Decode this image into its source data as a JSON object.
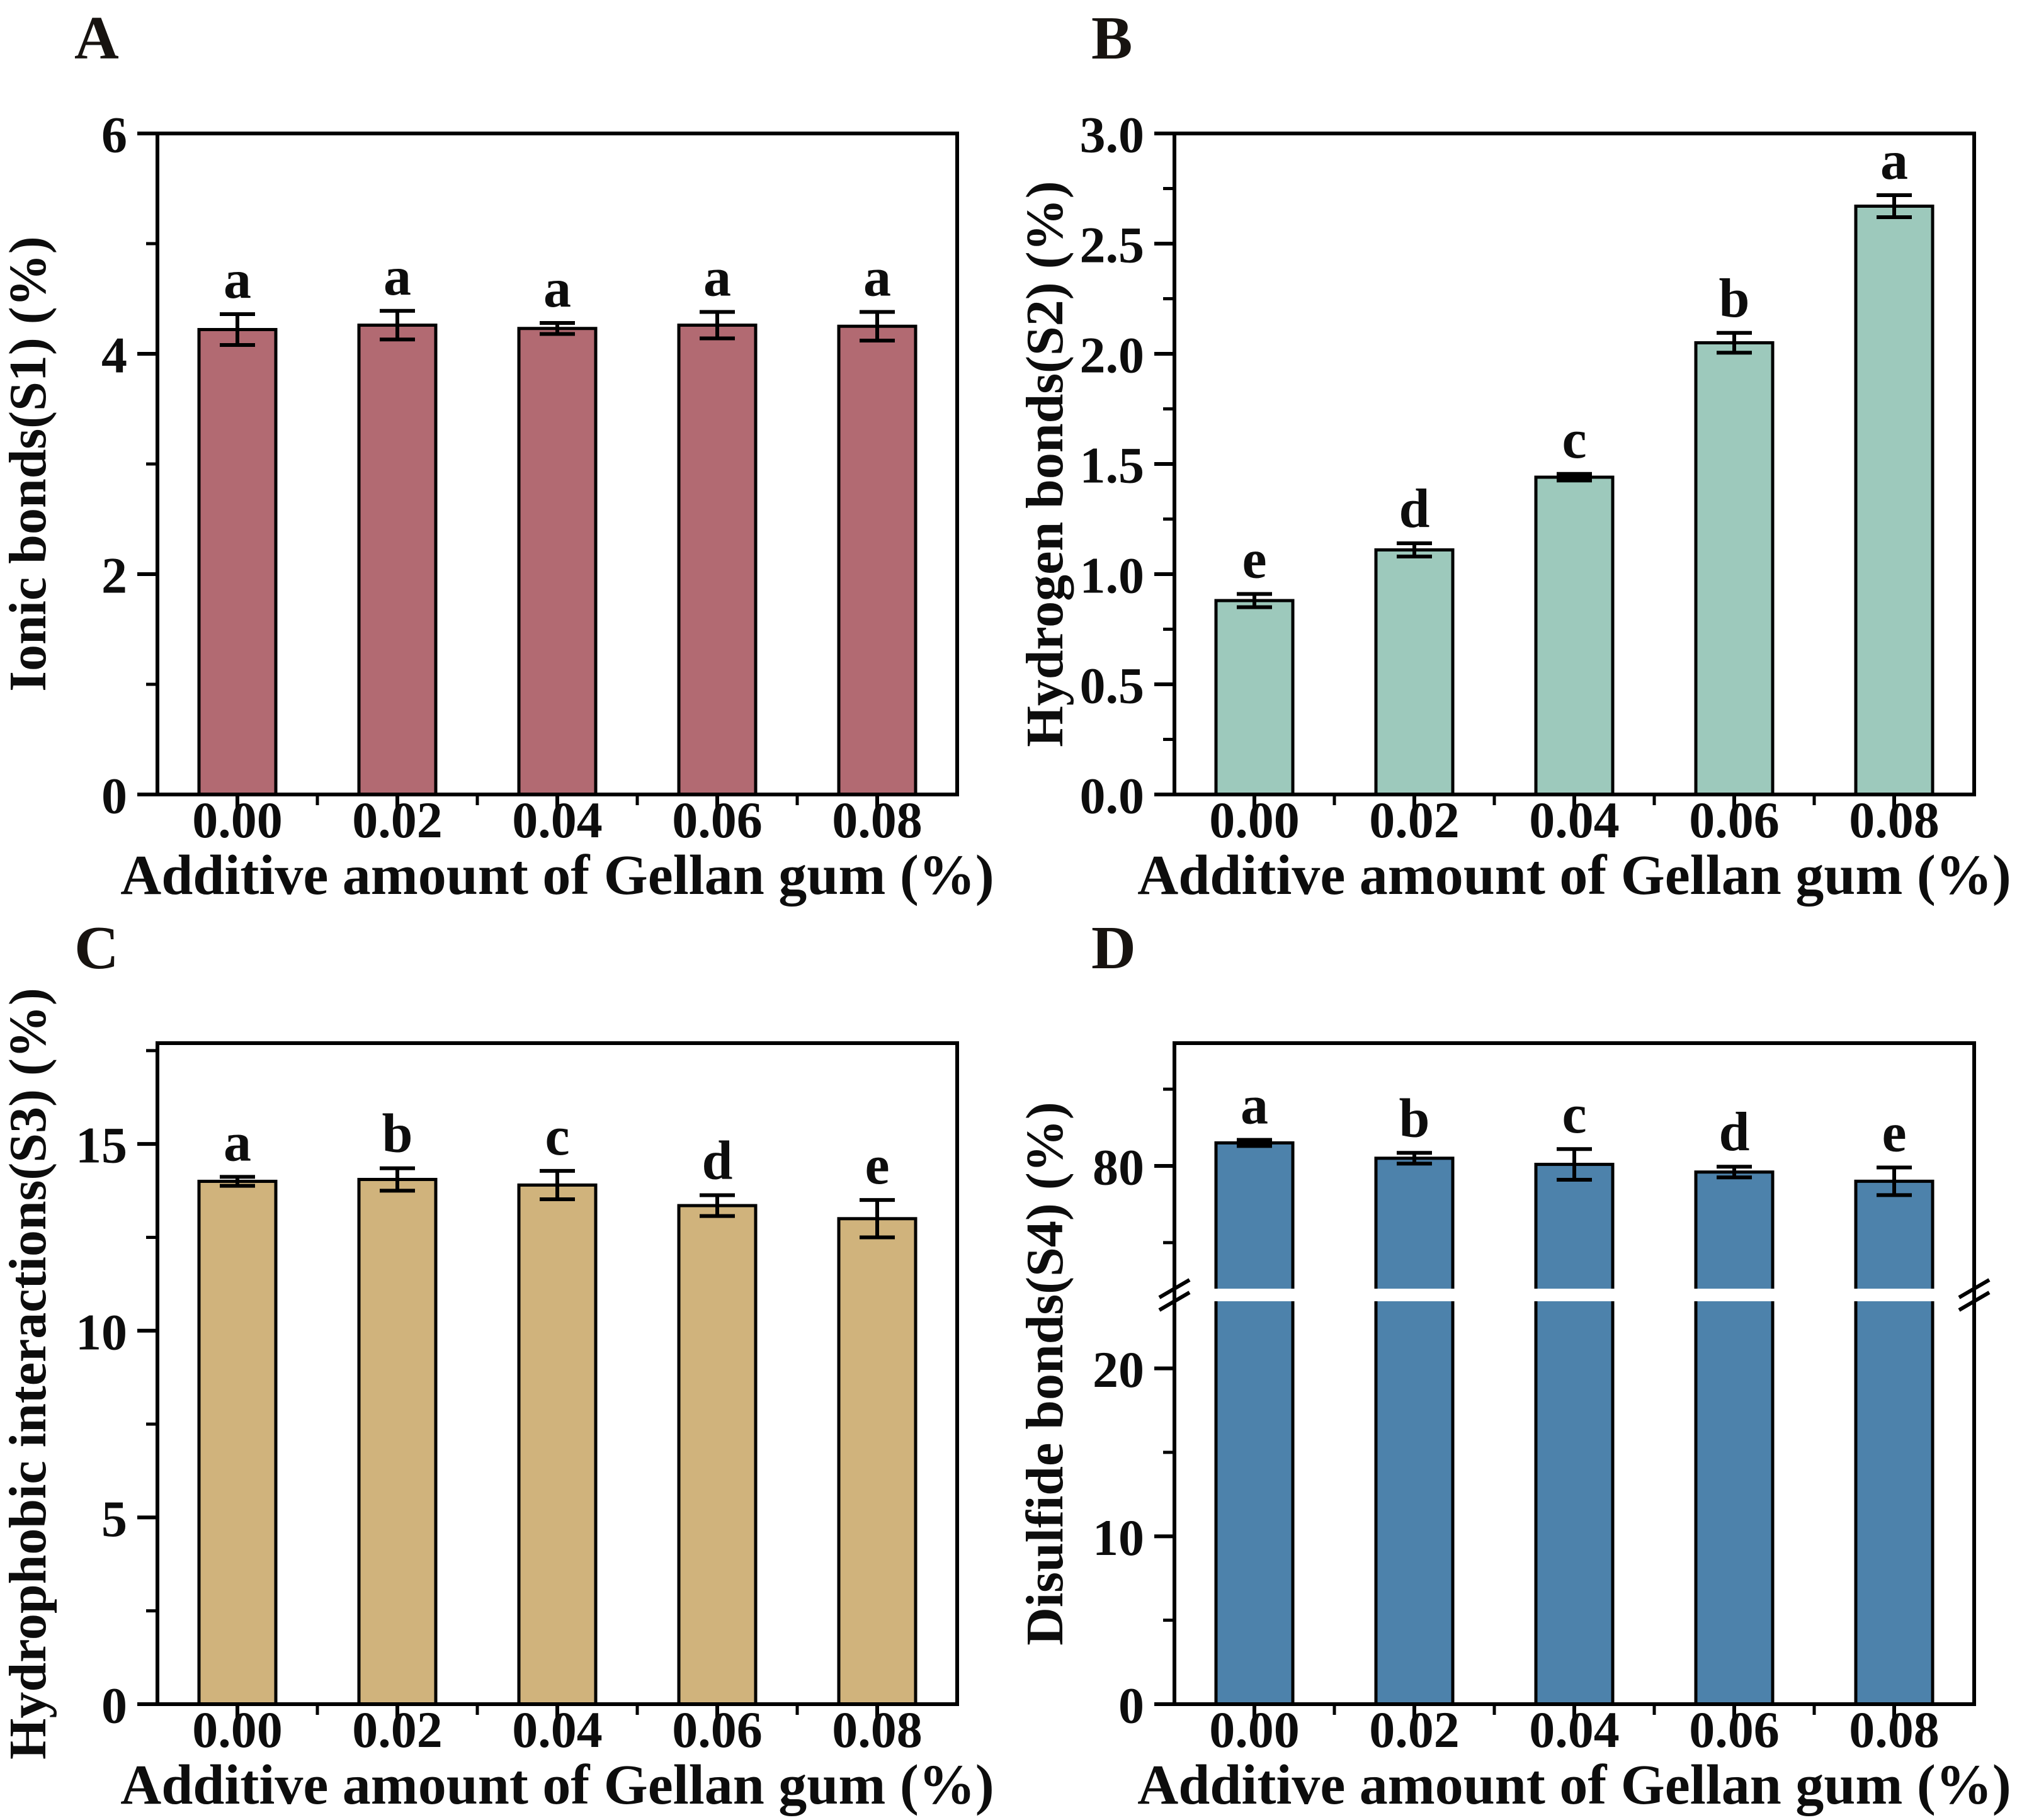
{
  "figure": {
    "background_color": "#ffffff",
    "axis_color": "#000000",
    "error_bar_color": "#000000",
    "x_axis_label": "Additive amount of Gellan gum (%)",
    "categories": [
      "0.00",
      "0.02",
      "0.04",
      "0.06",
      "0.08"
    ]
  },
  "chart_data": [
    {
      "type": "bar",
      "panel_label": "A",
      "ylabel": "Ionic bonds(S1) (%)",
      "xlabel": "Additive amount of Gellan gum (%)",
      "categories": [
        "0.00",
        "0.02",
        "0.04",
        "0.06",
        "0.08"
      ],
      "values": [
        4.22,
        4.26,
        4.23,
        4.26,
        4.25
      ],
      "errors": [
        0.14,
        0.13,
        0.05,
        0.12,
        0.13
      ],
      "sig_letters": [
        "a",
        "a",
        "a",
        "a",
        "a"
      ],
      "bar_color": "#b26a72",
      "bar_edge_color": "#000000",
      "ylim": [
        0,
        6
      ],
      "yticks": {
        "values": [
          0,
          2,
          4,
          6
        ],
        "labels": [
          "0",
          "2",
          "4",
          "6"
        ],
        "minor": [
          1,
          3,
          5
        ]
      },
      "grid": false,
      "legend": "none"
    },
    {
      "type": "bar",
      "panel_label": "B",
      "ylabel": "Hydrogen bonds(S2) (%)",
      "xlabel": "Additive amount of Gellan gum (%)",
      "categories": [
        "0.00",
        "0.02",
        "0.04",
        "0.06",
        "0.08"
      ],
      "values": [
        0.88,
        1.11,
        1.44,
        2.05,
        2.67
      ],
      "errors": [
        0.03,
        0.03,
        0.015,
        0.045,
        0.05
      ],
      "sig_letters": [
        "e",
        "d",
        "c",
        "b",
        "a"
      ],
      "bar_color": "#9dc9bc",
      "bar_edge_color": "#000000",
      "ylim": [
        0,
        3
      ],
      "yticks": {
        "values": [
          0,
          0.5,
          1.0,
          1.5,
          2.0,
          2.5,
          3.0
        ],
        "labels": [
          "0.0",
          "0.5",
          "1.0",
          "1.5",
          "2.0",
          "2.5",
          "3.0"
        ],
        "minor": [
          0.25,
          0.75,
          1.25,
          1.75,
          2.25,
          2.75
        ]
      },
      "grid": false,
      "legend": "none"
    },
    {
      "type": "bar",
      "panel_label": "C",
      "ylabel": "Hydrophobic interactions(S3) (%)",
      "xlabel": "Additive amount of Gellan gum (%)",
      "categories": [
        "0.00",
        "0.02",
        "0.04",
        "0.06",
        "0.08"
      ],
      "values": [
        14.0,
        14.05,
        13.9,
        13.35,
        13.0
      ],
      "errors": [
        0.12,
        0.3,
        0.38,
        0.28,
        0.5
      ],
      "sig_letters": [
        "a",
        "b",
        "c",
        "d",
        "e"
      ],
      "bar_color": "#d0b37c",
      "bar_edge_color": "#000000",
      "ylim": [
        0,
        17.7
      ],
      "yticks": {
        "values": [
          0,
          5,
          10,
          15
        ],
        "labels": [
          "0",
          "5",
          "10",
          "15"
        ],
        "minor": [
          2.5,
          7.5,
          12.5,
          17.5
        ]
      },
      "grid": false,
      "legend": "none"
    },
    {
      "type": "bar",
      "panel_label": "D",
      "ylabel": "Disulfide bonds(S4) (%)",
      "xlabel": "Additive amount of Gellan gum (%)",
      "categories": [
        "0.00",
        "0.02",
        "0.04",
        "0.06",
        "0.08"
      ],
      "values": [
        83,
        81,
        80.2,
        79.2,
        78
      ],
      "errors": [
        0.4,
        0.7,
        2.0,
        0.7,
        1.8
      ],
      "sig_letters": [
        "a",
        "b",
        "c",
        "d",
        "e"
      ],
      "bar_color": "#4d82ab",
      "bar_edge_color": "#000000",
      "axis_break": {
        "lower": {
          "min": 0,
          "max": 24,
          "ticks": [
            0,
            10,
            20
          ],
          "tick_labels": [
            "0",
            "10",
            "20"
          ],
          "minor": [
            5,
            15
          ]
        },
        "upper": {
          "min": 64,
          "max": 96,
          "ticks": [
            80
          ],
          "tick_labels": [
            "80"
          ],
          "minor": [
            70,
            90
          ]
        }
      },
      "grid": false,
      "legend": "none"
    }
  ]
}
